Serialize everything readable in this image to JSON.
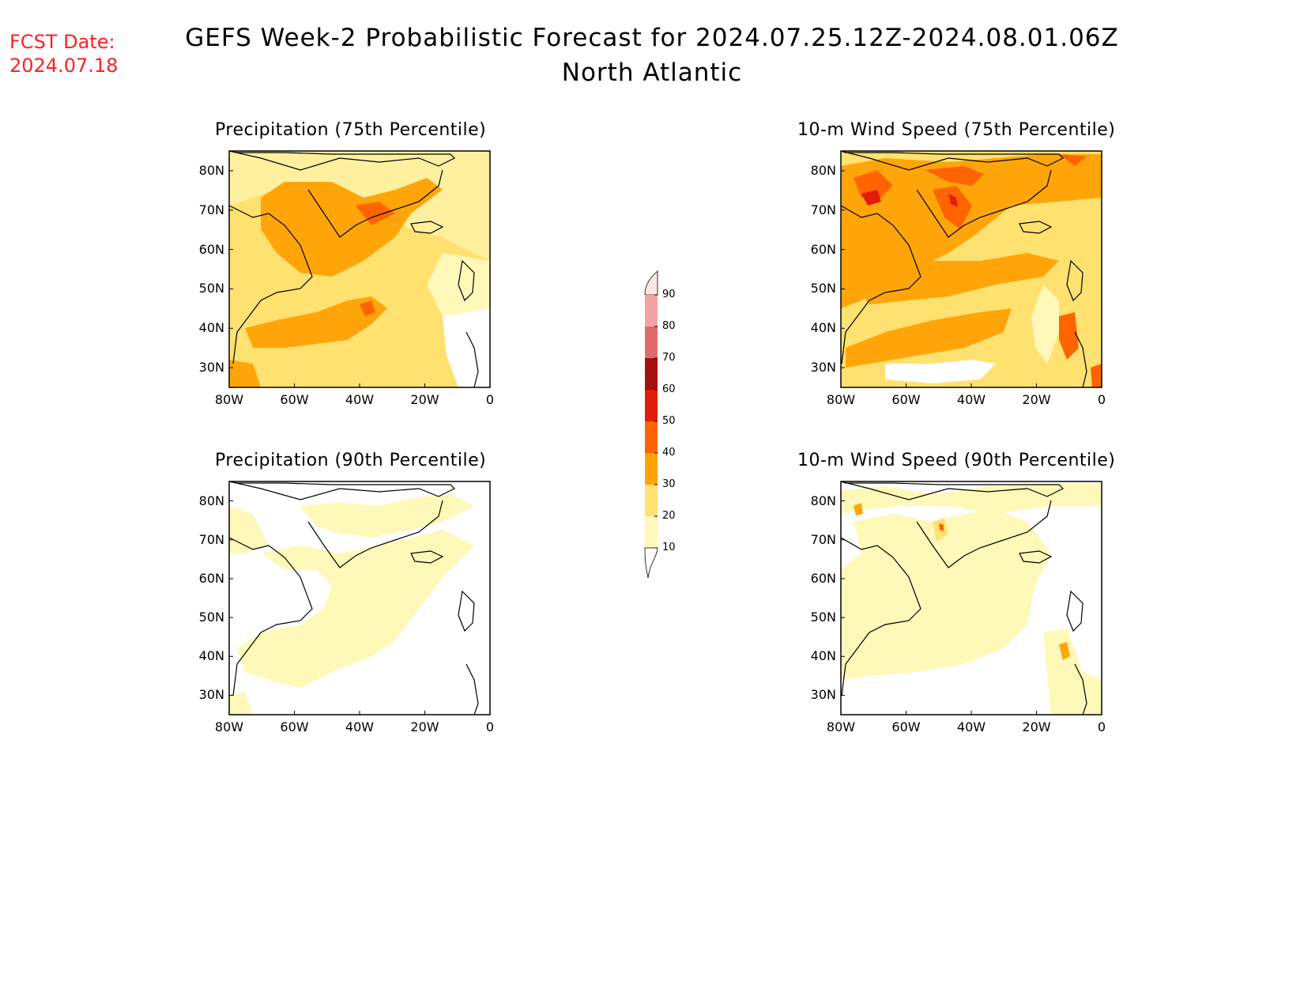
{
  "forecast_date": {
    "label": "FCST Date:",
    "value": "2024.07.18"
  },
  "title": {
    "line1": "GEFS Week-2 Probabilistic Forecast for 2024.07.25.12Z-2024.08.01.06Z",
    "line2": "North Atlantic"
  },
  "axes": {
    "lat_labels": [
      "80N",
      "70N",
      "60N",
      "50N",
      "40N",
      "30N"
    ],
    "lon_labels": [
      "80W",
      "60W",
      "40W",
      "20W",
      "0"
    ]
  },
  "panels": [
    {
      "id": "precip-75",
      "title": "Precipitation (75th Percentile)"
    },
    {
      "id": "wind-75",
      "title": "10-m Wind Speed (75th Percentile)"
    },
    {
      "id": "precip-90",
      "title": "Precipitation (90th Percentile)"
    },
    {
      "id": "wind-90",
      "title": "10-m Wind Speed (90th Percentile)"
    }
  ],
  "colorbar": {
    "labels": [
      "90",
      "80",
      "70",
      "60",
      "50",
      "40",
      "30",
      "20",
      "10"
    ],
    "colors": [
      "#ffe6e6",
      "#f4a3a3",
      "#e06b6b",
      "#a80f0f",
      "#e21c0a",
      "#ff6400",
      "#ffa50a",
      "#ffe170",
      "#fff8b8"
    ]
  }
}
